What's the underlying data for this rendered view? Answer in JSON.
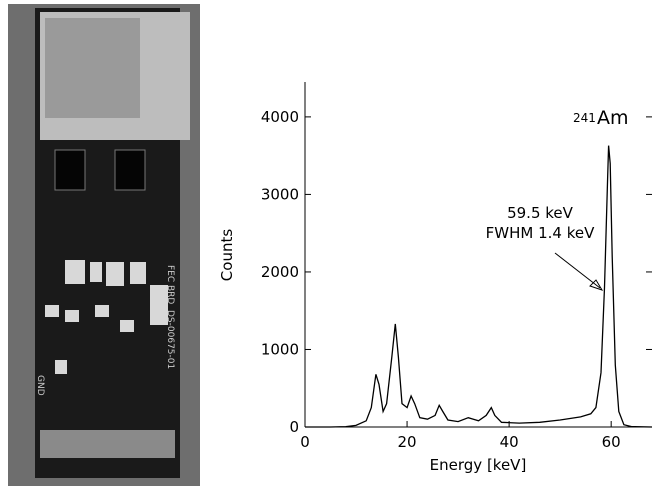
{
  "photo": {
    "labels": [
      "FEC BRD",
      "DS-00675-01",
      "GND"
    ]
  },
  "chart_data": {
    "type": "line",
    "x_label": "Energy [keV]",
    "y_label": "Counts",
    "annotations": [
      "59.5 keV",
      "FWHM 1.4 keV"
    ],
    "peak_label": {
      "sup": "241",
      "text": "Am"
    },
    "xlim": [
      0,
      68
    ],
    "ylim": [
      0,
      4450
    ],
    "xticks": [
      0,
      20,
      40,
      60
    ],
    "yticks": [
      0,
      1000,
      2000,
      3000,
      4000
    ],
    "series": [
      {
        "color": "#000000",
        "x": [
          0,
          5,
          8,
          10,
          12,
          13,
          13.9,
          14.5,
          15.3,
          16,
          17,
          17.7,
          18.3,
          19,
          20,
          20.8,
          21.5,
          22.5,
          24,
          25.5,
          26.3,
          27,
          28,
          30,
          32,
          33,
          34,
          35.5,
          36.5,
          37.2,
          38.5,
          42,
          46,
          50,
          54,
          56,
          57,
          58,
          58.7,
          59.3,
          59.5,
          59.8,
          60.2,
          60.8,
          61.5,
          62.5,
          64,
          68
        ],
        "values": [
          0,
          0,
          5,
          20,
          80,
          250,
          680,
          550,
          200,
          300,
          900,
          1330,
          900,
          300,
          250,
          400,
          300,
          120,
          100,
          150,
          280,
          200,
          90,
          70,
          120,
          100,
          80,
          150,
          250,
          150,
          60,
          50,
          60,
          90,
          130,
          170,
          250,
          700,
          1800,
          3200,
          3630,
          3400,
          2200,
          800,
          200,
          30,
          5,
          0
        ]
      }
    ]
  }
}
